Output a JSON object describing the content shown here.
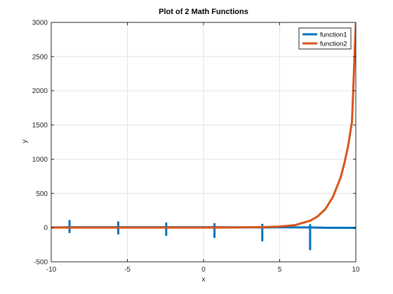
{
  "chart_data": {
    "type": "line",
    "title": "Plot of 2 Math Functions",
    "xlabel": "x",
    "ylabel": "y",
    "xlim": [
      -10,
      10
    ],
    "ylim": [
      -500,
      3000
    ],
    "xticks": [
      -10,
      -5,
      0,
      5,
      10
    ],
    "yticks": [
      -500,
      0,
      500,
      1000,
      1500,
      2000,
      2500,
      3000
    ],
    "grid": true,
    "legend_position": "top-right",
    "series": [
      {
        "name": "function1",
        "color": "#0072BD",
        "points": [
          [
            -10,
            2
          ],
          [
            -8.8,
            5
          ],
          [
            -5.6,
            5
          ],
          [
            -2.5,
            5
          ],
          [
            0.7,
            5
          ],
          [
            3.8,
            3
          ],
          [
            5,
            4
          ],
          [
            6.9,
            3
          ],
          [
            7.5,
            0
          ],
          [
            8,
            -2
          ],
          [
            10,
            -4
          ]
        ],
        "spikes": [
          {
            "x": -8.8,
            "high": 110,
            "low": -80
          },
          {
            "x": -5.6,
            "high": 90,
            "low": -100
          },
          {
            "x": -2.45,
            "high": 75,
            "low": -120
          },
          {
            "x": 0.72,
            "high": 65,
            "low": -150
          },
          {
            "x": 3.86,
            "high": 55,
            "low": -200
          },
          {
            "x": 7.0,
            "high": 50,
            "low": -330
          }
        ]
      },
      {
        "name": "function2",
        "color": "#D95319",
        "points": [
          [
            -10,
            0
          ],
          [
            0,
            0.5
          ],
          [
            2,
            2
          ],
          [
            4,
            8
          ],
          [
            5,
            15
          ],
          [
            6,
            36
          ],
          [
            7,
            100
          ],
          [
            7.5,
            165
          ],
          [
            8,
            270
          ],
          [
            8.5,
            450
          ],
          [
            9,
            730
          ],
          [
            9.25,
            940
          ],
          [
            9.5,
            1200
          ],
          [
            9.75,
            1550
          ],
          [
            10,
            2980
          ]
        ]
      }
    ]
  }
}
